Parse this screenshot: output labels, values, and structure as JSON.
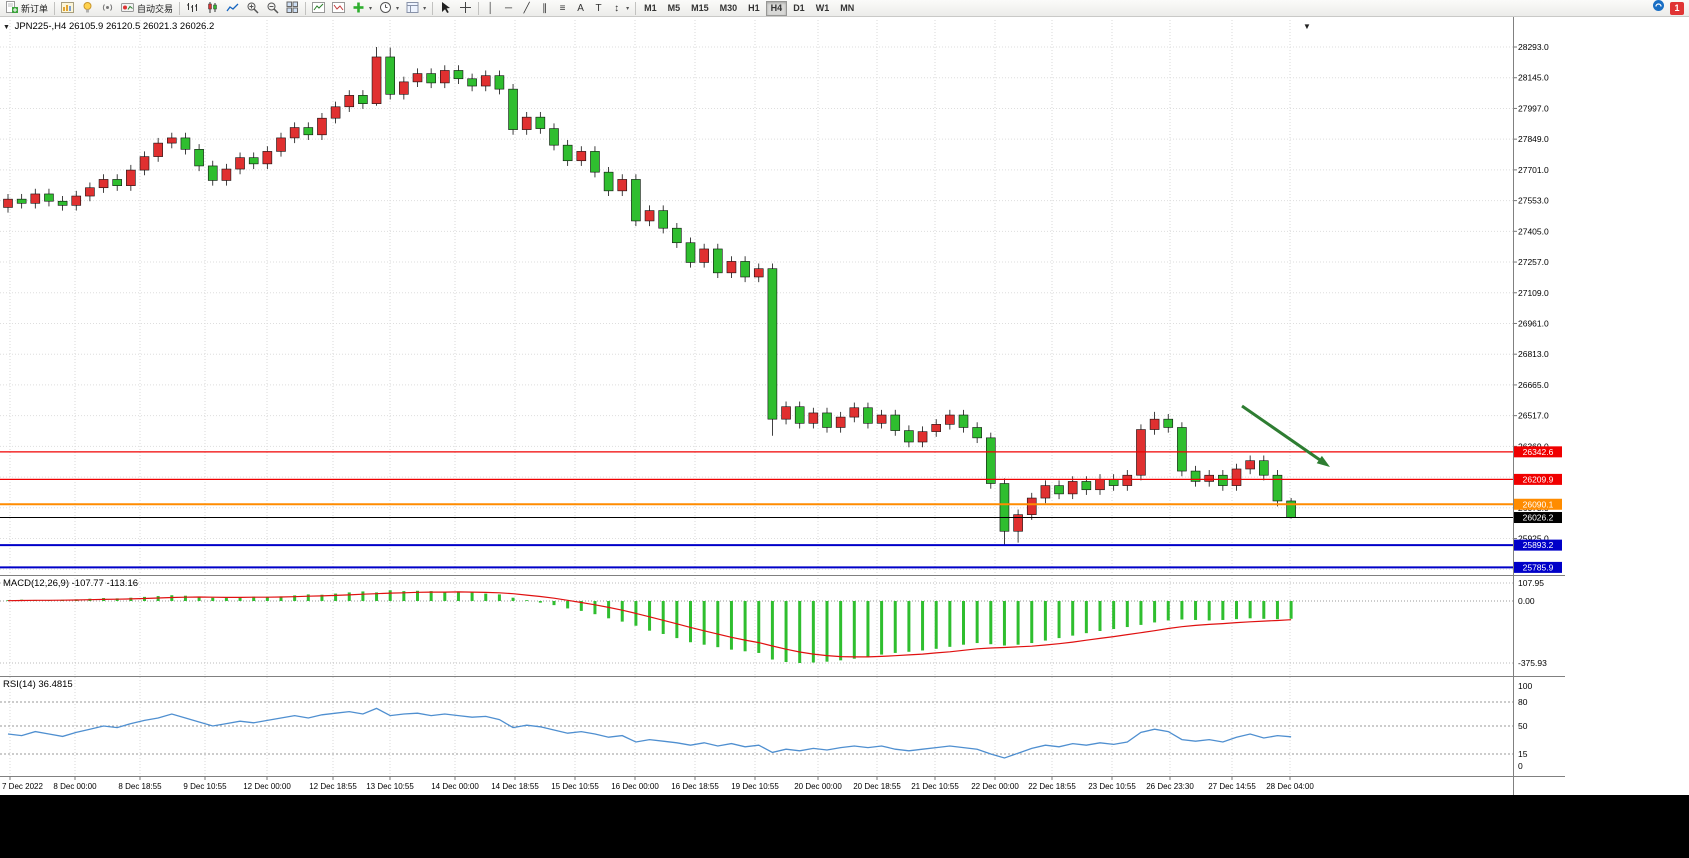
{
  "toolbar": {
    "new_order_label": "新订单",
    "autotrade_label": "自动交易",
    "text_tool_label": "A",
    "label_tool_label": "T",
    "timeframes": [
      "M1",
      "M5",
      "M15",
      "M30",
      "H1",
      "H4",
      "D1",
      "W1",
      "MN"
    ],
    "active_timeframe": "H4",
    "notification_badge": "1"
  },
  "chart": {
    "symbol_label": "JPN225-,H4",
    "ohlc_text": "26105.9 26120.5 26021.3 26026.2",
    "price_axis": [
      "28293.0",
      "28145.0",
      "27997.0",
      "27849.0",
      "27701.0",
      "27553.0",
      "27405.0",
      "27257.0",
      "27109.0",
      "26961.0",
      "26813.0",
      "26665.0",
      "26517.0",
      "26369.0",
      "26221.0",
      "26073.0",
      "25925.0",
      "25777.0"
    ],
    "price_lines": [
      {
        "label": "26342.6",
        "price": 26342.6,
        "color": "#F00000",
        "width": 1.2
      },
      {
        "label": "26209.9",
        "price": 26209.9,
        "color": "#F00000",
        "width": 1.2
      },
      {
        "label": "26090.1",
        "price": 26090.1,
        "color": "#FF8C00",
        "width": 2
      },
      {
        "label": "26026.2",
        "price": 26026.2,
        "color": "#000000",
        "width": 1
      },
      {
        "label": "25893.2",
        "price": 25893.2,
        "color": "#0000C8",
        "width": 2
      },
      {
        "label": "25785.9",
        "price": 25785.9,
        "color": "#0000C8",
        "width": 2
      }
    ],
    "arrow_color": "#2E7D32"
  },
  "chart_data": {
    "type": "candlestick",
    "symbol": "JPN225-",
    "timeframe": "H4",
    "up_color": "#E03030",
    "down_color": "#2FBE2F",
    "x_labels": [
      "7 Dec 2022",
      "8 Dec 00:00",
      "8 Dec 18:55",
      "9 Dec 10:55",
      "12 Dec 00:00",
      "12 Dec 18:55",
      "13 Dec 10:55",
      "14 Dec 00:00",
      "14 Dec 18:55",
      "15 Dec 10:55",
      "16 Dec 00:00",
      "16 Dec 18:55",
      "19 Dec 10:55",
      "20 Dec 00:00",
      "20 Dec 18:55",
      "21 Dec 10:55",
      "22 Dec 00:00",
      "22 Dec 18:55",
      "23 Dec 10:55",
      "26 Dec 23:30",
      "27 Dec 14:55",
      "28 Dec 04:00"
    ],
    "candles": [
      [
        27520,
        27585,
        27495,
        27560
      ],
      [
        27560,
        27585,
        27515,
        27540
      ],
      [
        27540,
        27610,
        27515,
        27585
      ],
      [
        27585,
        27610,
        27525,
        27550
      ],
      [
        27550,
        27575,
        27505,
        27530
      ],
      [
        27530,
        27600,
        27505,
        27575
      ],
      [
        27575,
        27640,
        27550,
        27615
      ],
      [
        27615,
        27680,
        27590,
        27655
      ],
      [
        27655,
        27680,
        27600,
        27625
      ],
      [
        27625,
        27725,
        27600,
        27700
      ],
      [
        27700,
        27790,
        27675,
        27765
      ],
      [
        27765,
        27855,
        27740,
        27830
      ],
      [
        27830,
        27880,
        27805,
        27855
      ],
      [
        27855,
        27880,
        27775,
        27800
      ],
      [
        27800,
        27825,
        27695,
        27720
      ],
      [
        27720,
        27745,
        27625,
        27650
      ],
      [
        27650,
        27730,
        27625,
        27705
      ],
      [
        27705,
        27785,
        27680,
        27760
      ],
      [
        27760,
        27785,
        27705,
        27730
      ],
      [
        27730,
        27815,
        27705,
        27790
      ],
      [
        27790,
        27880,
        27765,
        27855
      ],
      [
        27855,
        27930,
        27830,
        27905
      ],
      [
        27905,
        27930,
        27845,
        27870
      ],
      [
        27870,
        27975,
        27845,
        27950
      ],
      [
        27950,
        28030,
        27925,
        28005
      ],
      [
        28005,
        28085,
        27980,
        28060
      ],
      [
        28060,
        28085,
        27995,
        28020
      ],
      [
        28020,
        28293,
        28010,
        28245
      ],
      [
        28245,
        28290,
        28040,
        28065
      ],
      [
        28065,
        28150,
        28040,
        28125
      ],
      [
        28125,
        28190,
        28100,
        28165
      ],
      [
        28165,
        28190,
        28095,
        28120
      ],
      [
        28120,
        28205,
        28095,
        28180
      ],
      [
        28180,
        28205,
        28115,
        28140
      ],
      [
        28140,
        28165,
        28080,
        28105
      ],
      [
        28105,
        28180,
        28080,
        28155
      ],
      [
        28155,
        28180,
        28065,
        28090
      ],
      [
        28090,
        28115,
        27870,
        27895
      ],
      [
        27895,
        27980,
        27870,
        27955
      ],
      [
        27955,
        27980,
        27875,
        27900
      ],
      [
        27900,
        27925,
        27795,
        27820
      ],
      [
        27820,
        27845,
        27720,
        27745
      ],
      [
        27745,
        27815,
        27720,
        27790
      ],
      [
        27790,
        27815,
        27665,
        27690
      ],
      [
        27690,
        27715,
        27575,
        27600
      ],
      [
        27600,
        27680,
        27575,
        27655
      ],
      [
        27655,
        27680,
        27430,
        27455
      ],
      [
        27455,
        27530,
        27430,
        27505
      ],
      [
        27505,
        27530,
        27395,
        27420
      ],
      [
        27420,
        27445,
        27325,
        27350
      ],
      [
        27350,
        27375,
        27230,
        27255
      ],
      [
        27255,
        27345,
        27230,
        27320
      ],
      [
        27320,
        27345,
        27180,
        27205
      ],
      [
        27205,
        27285,
        27180,
        27260
      ],
      [
        27260,
        27285,
        27160,
        27185
      ],
      [
        27185,
        27250,
        27160,
        27225
      ],
      [
        27225,
        27250,
        26420,
        26500
      ],
      [
        26500,
        26585,
        26475,
        26560
      ],
      [
        26560,
        26585,
        26455,
        26480
      ],
      [
        26480,
        26555,
        26455,
        26530
      ],
      [
        26530,
        26555,
        26435,
        26460
      ],
      [
        26460,
        26535,
        26435,
        26510
      ],
      [
        26510,
        26580,
        26485,
        26555
      ],
      [
        26555,
        26580,
        26455,
        26480
      ],
      [
        26480,
        26545,
        26455,
        26520
      ],
      [
        26520,
        26545,
        26420,
        26445
      ],
      [
        26445,
        26470,
        26365,
        26390
      ],
      [
        26390,
        26465,
        26365,
        26440
      ],
      [
        26440,
        26500,
        26415,
        26475
      ],
      [
        26475,
        26545,
        26450,
        26520
      ],
      [
        26520,
        26545,
        26435,
        26460
      ],
      [
        26460,
        26485,
        26385,
        26410
      ],
      [
        26410,
        26435,
        26165,
        26190
      ],
      [
        26190,
        26215,
        25895,
        25960
      ],
      [
        25960,
        26065,
        25905,
        26040
      ],
      [
        26040,
        26145,
        26015,
        26120
      ],
      [
        26120,
        26205,
        26095,
        26180
      ],
      [
        26180,
        26205,
        26115,
        26140
      ],
      [
        26140,
        26225,
        26115,
        26200
      ],
      [
        26200,
        26225,
        26135,
        26160
      ],
      [
        26160,
        26235,
        26135,
        26210
      ],
      [
        26210,
        26235,
        26155,
        26180
      ],
      [
        26180,
        26255,
        26155,
        26230
      ],
      [
        26230,
        26475,
        26205,
        26450
      ],
      [
        26450,
        26535,
        26425,
        26500
      ],
      [
        26500,
        26525,
        26435,
        26460
      ],
      [
        26460,
        26485,
        26225,
        26250
      ],
      [
        26250,
        26275,
        26175,
        26200
      ],
      [
        26200,
        26255,
        26175,
        26230
      ],
      [
        26230,
        26255,
        26155,
        26180
      ],
      [
        26180,
        26285,
        26155,
        26260
      ],
      [
        26260,
        26325,
        26235,
        26300
      ],
      [
        26300,
        26325,
        26205,
        26230
      ],
      [
        26230,
        26255,
        26080,
        26105.9
      ],
      [
        26105.9,
        26120.5,
        26021.3,
        26026.2
      ]
    ],
    "macd": {
      "label": "MACD(12,26,9)",
      "values_text": "-107.77 -113.16",
      "macd_value": -107.77,
      "signal_value": -113.16,
      "axis": [
        "107.95",
        "0.00",
        "-375.93"
      ],
      "histogram": [
        5,
        8,
        6,
        4,
        7,
        10,
        14,
        18,
        16,
        20,
        25,
        30,
        35,
        32,
        26,
        20,
        18,
        22,
        26,
        24,
        28,
        34,
        40,
        38,
        45,
        52,
        58,
        52,
        65,
        60,
        62,
        60,
        55,
        58,
        52,
        45,
        40,
        20,
        5,
        -10,
        -25,
        -45,
        -60,
        -80,
        -105,
        -125,
        -150,
        -180,
        -200,
        -225,
        -250,
        -265,
        -280,
        -295,
        -305,
        -315,
        -355,
        -370,
        -376,
        -373,
        -368,
        -360,
        -350,
        -338,
        -325,
        -315,
        -308,
        -300,
        -290,
        -278,
        -265,
        -255,
        -262,
        -270,
        -265,
        -255,
        -240,
        -225,
        -210,
        -195,
        -182,
        -170,
        -158,
        -145,
        -130,
        -118,
        -112,
        -115,
        -118,
        -115,
        -110,
        -105,
        -108,
        -110,
        -107.77
      ],
      "signal": [
        2,
        3,
        4,
        4,
        5,
        6,
        8,
        10,
        11,
        13,
        15,
        18,
        21,
        23,
        24,
        23,
        22,
        22,
        23,
        23,
        24,
        26,
        29,
        31,
        34,
        37,
        41,
        44,
        48,
        50,
        53,
        54,
        54,
        55,
        54,
        52,
        50,
        44,
        36,
        27,
        17,
        4,
        -9,
        -23,
        -39,
        -56,
        -75,
        -96,
        -117,
        -138,
        -160,
        -181,
        -201,
        -220,
        -237,
        -252,
        -273,
        -292,
        -309,
        -322,
        -331,
        -337,
        -339,
        -339,
        -336,
        -332,
        -327,
        -322,
        -315,
        -308,
        -299,
        -290,
        -285,
        -282,
        -278,
        -274,
        -267,
        -259,
        -249,
        -238,
        -227,
        -216,
        -204,
        -192,
        -180,
        -167,
        -156,
        -148,
        -142,
        -137,
        -131,
        -126,
        -122,
        -118,
        -113.16
      ]
    },
    "rsi": {
      "label": "RSI(14)",
      "value": "36.4815",
      "axis": [
        "100",
        "80",
        "50",
        "15",
        "0"
      ],
      "levels": [
        80,
        50,
        15
      ],
      "series": [
        40,
        38,
        43,
        40,
        37,
        42,
        46,
        50,
        48,
        53,
        57,
        60,
        65,
        60,
        55,
        50,
        53,
        56,
        54,
        57,
        60,
        63,
        60,
        64,
        66,
        68,
        65,
        72,
        63,
        65,
        66,
        63,
        65,
        63,
        61,
        62,
        58,
        48,
        51,
        49,
        45,
        41,
        43,
        40,
        36,
        38,
        30,
        33,
        31,
        29,
        26,
        29,
        25,
        28,
        24,
        26,
        17,
        21,
        19,
        22,
        20,
        23,
        25,
        23,
        25,
        21,
        19,
        21,
        23,
        25,
        23,
        21,
        15,
        10,
        16,
        22,
        26,
        24,
        28,
        26,
        29,
        27,
        30,
        42,
        46,
        43,
        33,
        31,
        33,
        30,
        36,
        40,
        35,
        38,
        36.48
      ]
    }
  }
}
